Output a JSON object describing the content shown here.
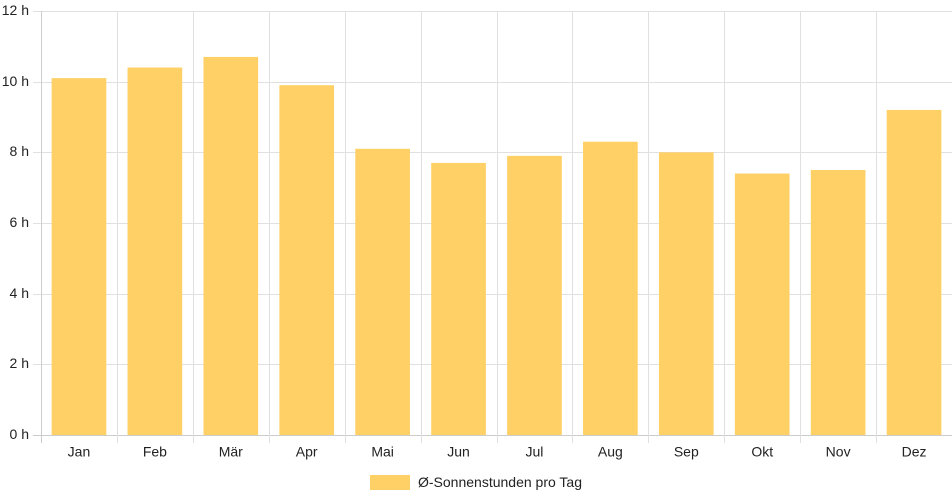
{
  "chart_data": {
    "type": "bar",
    "categories": [
      "Jan",
      "Feb",
      "Mär",
      "Apr",
      "Mai",
      "Jun",
      "Jul",
      "Aug",
      "Sep",
      "Okt",
      "Nov",
      "Dez"
    ],
    "series": [
      {
        "name": "Ø-Sonnenstunden pro Tag",
        "values": [
          10.1,
          10.4,
          10.7,
          9.9,
          8.1,
          7.7,
          7.9,
          8.3,
          8.0,
          7.4,
          7.5,
          9.2
        ]
      }
    ],
    "yticks": [
      "0 h",
      "2 h",
      "4 h",
      "6 h",
      "8 h",
      "10 h",
      "12 h"
    ],
    "ylim": [
      0,
      12
    ],
    "grid": true,
    "legend_position": "bottom",
    "colors": {
      "bar": "#fed066",
      "grid": "#e0e0e0",
      "axis": "#cccccc"
    }
  }
}
